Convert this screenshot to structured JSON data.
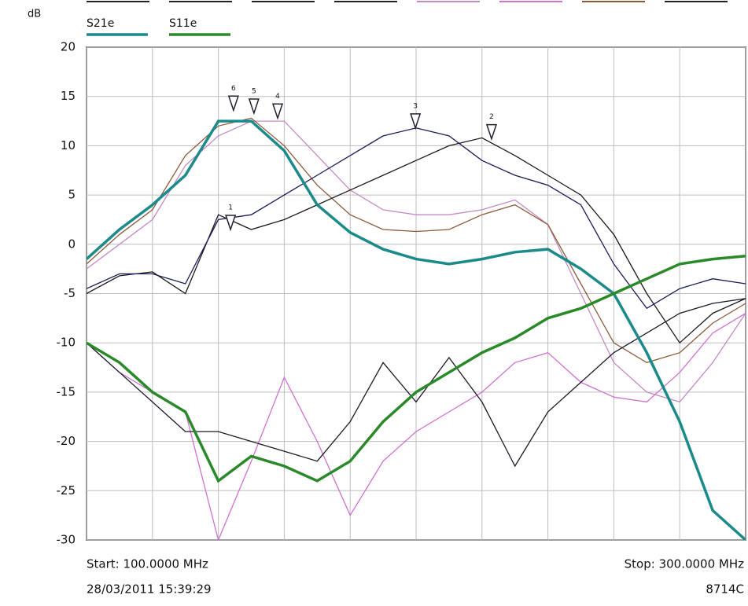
{
  "chart_data": {
    "type": "line",
    "y_label": "dB",
    "start_label": "Start: 100.0000 MHz",
    "stop_label": "Stop: 300.0000 MHz",
    "timestamp": "28/03/2011 15:39:29",
    "instrument": "8714C",
    "xlim": [
      100,
      300
    ],
    "xticks": [
      100,
      120,
      140,
      160,
      180,
      200,
      220,
      240,
      260,
      280,
      300
    ],
    "ylim": [
      -30,
      20
    ],
    "yticks": [
      20,
      15,
      10,
      5,
      0,
      -5,
      -10,
      -15,
      -20,
      -25,
      -30
    ],
    "grid": true,
    "x": [
      100,
      110,
      120,
      130,
      140,
      150,
      160,
      170,
      180,
      190,
      200,
      210,
      220,
      230,
      240,
      250,
      260,
      270,
      280,
      290,
      300
    ],
    "series": [
      {
        "color": "#c48ac4",
        "values": [
          -2.5,
          0,
          2.5,
          8,
          11,
          12.5,
          12.5,
          9,
          5.5,
          3.5,
          3,
          3,
          3.5,
          4.5,
          2,
          -5,
          -12,
          -15,
          -16,
          -12,
          -7
        ]
      },
      {
        "color": "#8a5a3a",
        "values": [
          -2,
          1,
          3.5,
          9,
          12,
          12.8,
          10,
          6,
          3,
          1.5,
          1.3,
          1.5,
          3,
          4,
          2,
          -4,
          -10,
          -12,
          -11,
          -8,
          -6
        ]
      },
      {
        "color": "#1a1a1a",
        "values": [
          -5,
          -3.2,
          -2.8,
          -5,
          3,
          1.5,
          2.5,
          4,
          5.5,
          7,
          8.5,
          10,
          10.8,
          9,
          7,
          5,
          1,
          -5,
          -10,
          -7,
          -5.5
        ]
      },
      {
        "color": "#1a1a5a",
        "values": [
          -4.5,
          -3,
          -3,
          -4,
          2.5,
          3,
          5,
          7,
          9,
          11,
          11.8,
          11,
          8.5,
          7,
          6,
          4,
          -2,
          -6.5,
          -4.5,
          -3.5,
          -4
        ]
      },
      {
        "color": "#d070d0",
        "values": [
          -10,
          -13,
          -15,
          -17,
          -30,
          -22,
          -13.5,
          -20,
          -27.5,
          -22,
          -19,
          -17,
          -15,
          -12,
          -11,
          -14,
          -15.5,
          -16,
          -13,
          -9,
          -7
        ]
      },
      {
        "color": "#1a1a2a",
        "values": [
          -10,
          -13,
          -16,
          -19,
          -19,
          -20,
          -21,
          -22,
          -18,
          -12,
          -16,
          -11.5,
          -16,
          -22.5,
          -17,
          -14,
          -11,
          -9,
          -7,
          -6,
          -5.5
        ]
      },
      {
        "name": "S21e",
        "color": "#1b8a8a",
        "values": [
          -1.5,
          1.5,
          4,
          7,
          12.5,
          12.5,
          9.5,
          4,
          1.2,
          -0.5,
          -1.5,
          -2,
          -1.5,
          -0.8,
          -0.5,
          -2.5,
          -5,
          -11,
          -18,
          -27,
          -30
        ]
      },
      {
        "name": "S11e",
        "color": "#2a8a2a",
        "values": [
          -10,
          -12,
          -15,
          -17,
          -24,
          -21.5,
          -22.5,
          -24,
          -22,
          -18,
          -15,
          -13,
          -11,
          -9.5,
          -7.5,
          -6.5,
          -5,
          -3.5,
          -2,
          -1.5,
          -1.2
        ]
      }
    ],
    "markers": [
      {
        "label": "6",
        "x": 144.6,
        "y": 13.6
      },
      {
        "label": "5",
        "x": 150.8,
        "y": 13.3
      },
      {
        "label": "4",
        "x": 158,
        "y": 12.8
      },
      {
        "label": "3",
        "x": 199.8,
        "y": 11.8
      },
      {
        "label": "2",
        "x": 222.9,
        "y": 10.7
      },
      {
        "label": "1",
        "x": 143.7,
        "y": 1.5
      }
    ]
  }
}
